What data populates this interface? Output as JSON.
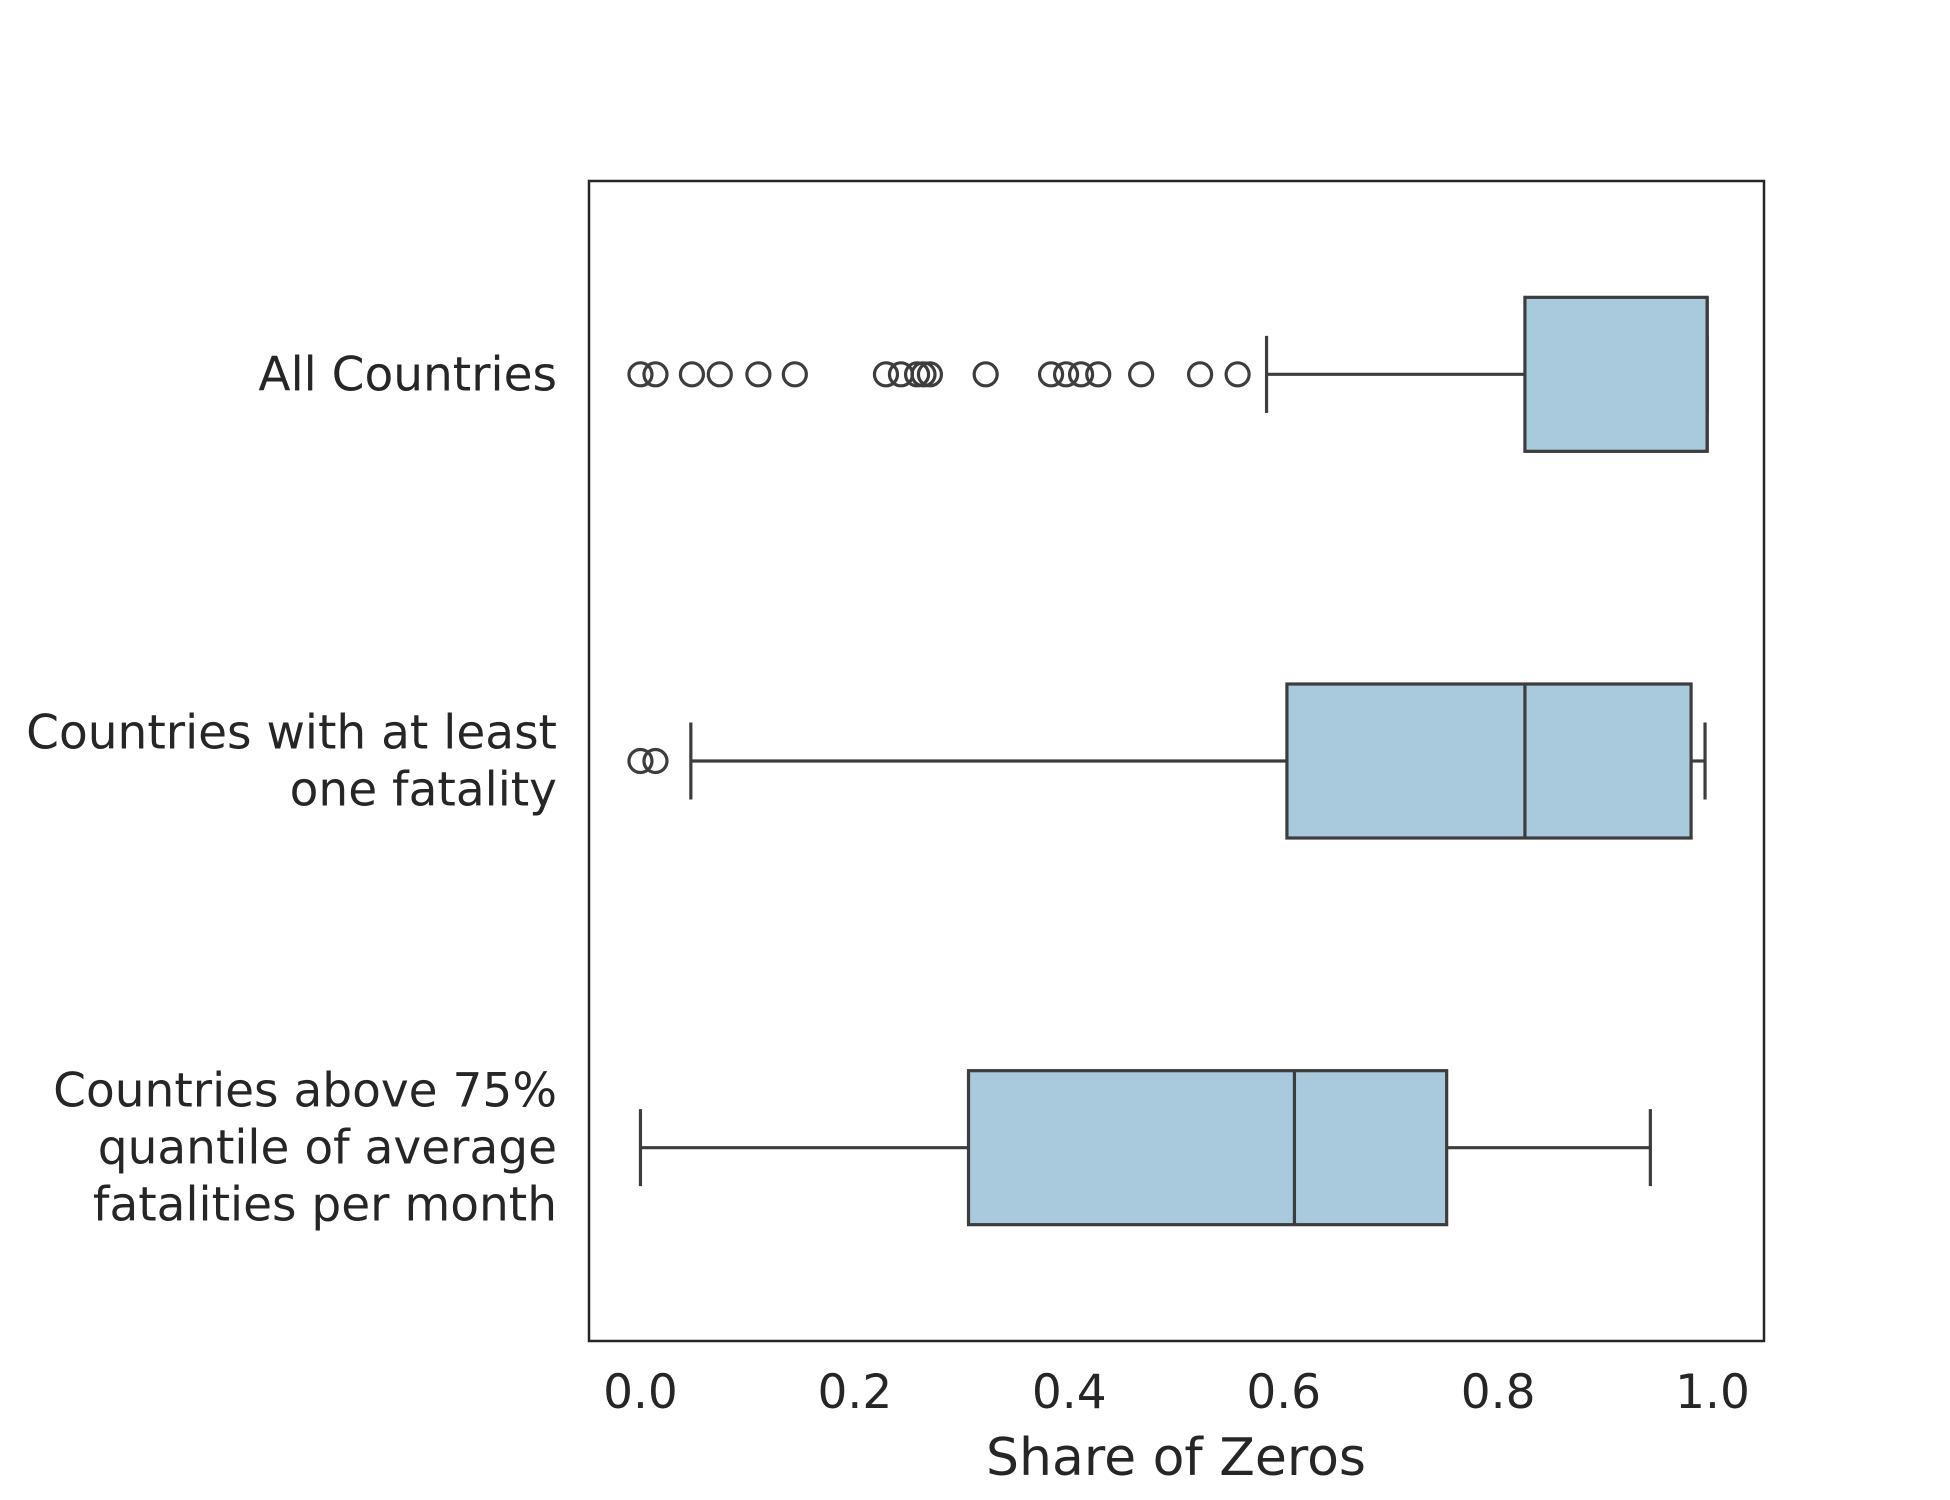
{
  "chart_data": {
    "type": "boxplot",
    "orientation": "horizontal",
    "xlabel": "Share of Zeros",
    "ylabel": "",
    "xlim": [
      -0.048,
      1.048
    ],
    "xticks": [
      0.0,
      0.2,
      0.4,
      0.6,
      0.8,
      1.0
    ],
    "xtick_labels": [
      "0.0",
      "0.2",
      "0.4",
      "0.6",
      "0.8",
      "1.0"
    ],
    "grid": false,
    "colors": {
      "box_fill": "#a9c9dc",
      "line": "#3d3d3d",
      "text": "#262626"
    },
    "categories": [
      {
        "label_lines": [
          "All Countries"
        ],
        "whisker_low": 0.584,
        "q1": 0.825,
        "median": 0.995,
        "q3": 0.995,
        "whisker_high": 0.995,
        "outliers": [
          0.0,
          0.014,
          0.048,
          0.074,
          0.11,
          0.144,
          0.229,
          0.243,
          0.258,
          0.264,
          0.27,
          0.322,
          0.383,
          0.397,
          0.411,
          0.427,
          0.467,
          0.522,
          0.557
        ]
      },
      {
        "label_lines": [
          "Countries with at least",
          "one fatality"
        ],
        "whisker_low": 0.047,
        "q1": 0.603,
        "median": 0.825,
        "q3": 0.98,
        "whisker_high": 0.993,
        "outliers": [
          0.0,
          0.014
        ]
      },
      {
        "label_lines": [
          "Countries above 75%",
          "quantile of average",
          "fatalities per month"
        ],
        "whisker_low": 0.0,
        "q1": 0.306,
        "median": 0.61,
        "q3": 0.752,
        "whisker_high": 0.942,
        "outliers": []
      }
    ]
  }
}
